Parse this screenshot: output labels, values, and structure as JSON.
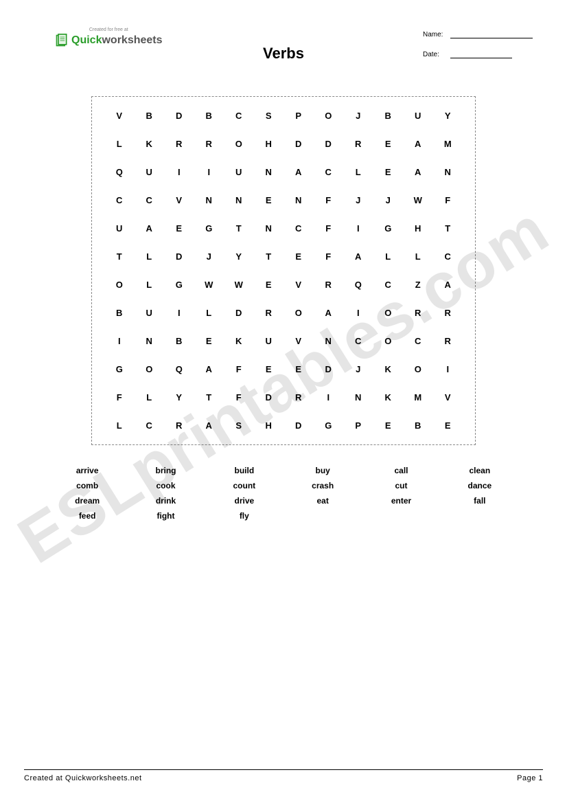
{
  "logo": {
    "tagline": "Created for free at",
    "quick": "Quick",
    "worksheets": "worksheets"
  },
  "title": "Verbs",
  "header_fields": {
    "name_label": "Name:",
    "date_label": "Date:"
  },
  "grid": {
    "cols": 12,
    "rows": 12,
    "cells": [
      [
        "V",
        "B",
        "D",
        "B",
        "C",
        "S",
        "P",
        "O",
        "J",
        "B",
        "U",
        "Y"
      ],
      [
        "L",
        "K",
        "R",
        "R",
        "O",
        "H",
        "D",
        "D",
        "R",
        "E",
        "A",
        "M"
      ],
      [
        "Q",
        "U",
        "I",
        "I",
        "U",
        "N",
        "A",
        "C",
        "L",
        "E",
        "A",
        "N"
      ],
      [
        "C",
        "C",
        "V",
        "N",
        "N",
        "E",
        "N",
        "F",
        "J",
        "J",
        "W",
        "F"
      ],
      [
        "U",
        "A",
        "E",
        "G",
        "T",
        "N",
        "C",
        "F",
        "I",
        "G",
        "H",
        "T"
      ],
      [
        "T",
        "L",
        "D",
        "J",
        "Y",
        "T",
        "E",
        "F",
        "A",
        "L",
        "L",
        "C"
      ],
      [
        "O",
        "L",
        "G",
        "W",
        "W",
        "E",
        "V",
        "R",
        "Q",
        "C",
        "Z",
        "A"
      ],
      [
        "B",
        "U",
        "I",
        "L",
        "D",
        "R",
        "O",
        "A",
        "I",
        "O",
        "R",
        "R"
      ],
      [
        "I",
        "N",
        "B",
        "E",
        "K",
        "U",
        "V",
        "N",
        "C",
        "O",
        "C",
        "R"
      ],
      [
        "G",
        "O",
        "Q",
        "A",
        "F",
        "E",
        "E",
        "D",
        "J",
        "K",
        "O",
        "I"
      ],
      [
        "F",
        "L",
        "Y",
        "T",
        "F",
        "D",
        "R",
        "I",
        "N",
        "K",
        "M",
        "V"
      ],
      [
        "L",
        "C",
        "R",
        "A",
        "S",
        "H",
        "D",
        "G",
        "P",
        "E",
        "B",
        "E"
      ]
    ],
    "border_color": "#888888",
    "cell_font_size": 13,
    "cell_font_weight": "bold"
  },
  "words": [
    "arrive",
    "bring",
    "build",
    "buy",
    "call",
    "clean",
    "comb",
    "cook",
    "count",
    "crash",
    "cut",
    "dance",
    "dream",
    "drink",
    "drive",
    "eat",
    "enter",
    "fall",
    "feed",
    "fight",
    "fly"
  ],
  "watermark": "ESLprintables.com",
  "footer": {
    "left": "Created at Quickworksheets.net",
    "right": "Page 1"
  },
  "colors": {
    "background": "#ffffff",
    "text": "#000000",
    "logo_green": "#2a9d2a",
    "logo_grey": "#555555",
    "watermark": "rgba(0,0,0,0.10)"
  }
}
